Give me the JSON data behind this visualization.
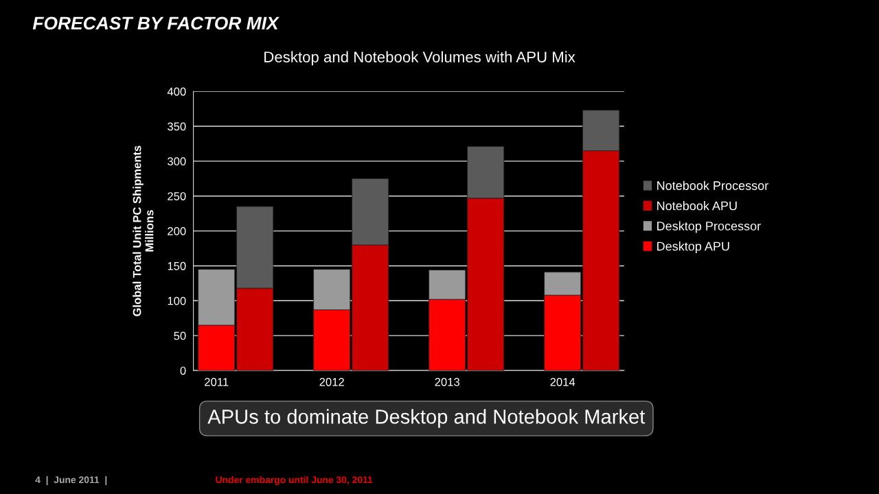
{
  "chart_data": {
    "type": "bar",
    "title": "FORECAST BY FACTOR MIX",
    "subtitle": "Desktop and Notebook Volumes with APU Mix",
    "ylabel": "Global Total Unit PC Shipments\nMillions",
    "categories": [
      "2011",
      null,
      "2012",
      null,
      "2013",
      null,
      "2014",
      null
    ],
    "stacked": true,
    "series": [
      {
        "name": "Desktop APU",
        "color": "#ff0000",
        "values": [
          65,
          null,
          87,
          null,
          102,
          null,
          108,
          null
        ]
      },
      {
        "name": "Desktop Processor",
        "color": "#9a9a9a",
        "values": [
          80,
          null,
          58,
          null,
          42,
          null,
          33,
          null
        ]
      },
      {
        "name": "Notebook APU",
        "color": "#cc0000",
        "values": [
          null,
          118,
          null,
          180,
          null,
          247,
          null,
          315
        ]
      },
      {
        "name": "Notebook Processor",
        "color": "#5a5a5a",
        "values": [
          null,
          117,
          null,
          95,
          null,
          74,
          null,
          58
        ]
      }
    ],
    "ylim": [
      0,
      400
    ],
    "yticks": [
      0,
      50,
      100,
      150,
      200,
      250,
      300,
      350,
      400
    ],
    "grid": "y",
    "legend": "right",
    "annotations": [
      "APUs to dominate Desktop and Notebook Market",
      "4  |  June 2011  |",
      "Under embargo until June 30, 2011"
    ]
  }
}
